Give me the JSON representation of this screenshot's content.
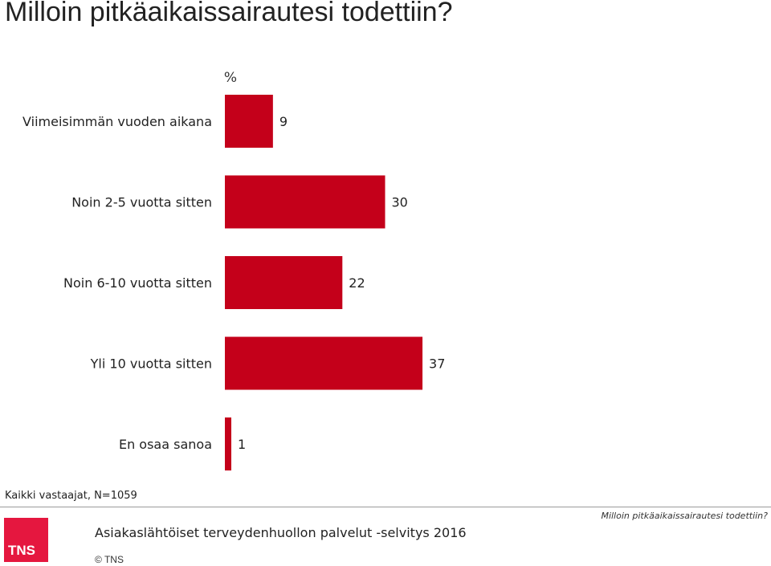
{
  "title": "Milloin pitkäaikaissairautesi todettiin?",
  "chart_data": {
    "type": "bar",
    "orientation": "horizontal",
    "unit_label": "%",
    "categories": [
      "Viimeisimmän vuoden aikana",
      "Noin 2-5 vuotta sitten",
      "Noin 6-10 vuotta sitten",
      "Yli 10 vuotta sitten",
      "En osaa sanoa"
    ],
    "values": [
      9,
      30,
      22,
      37,
      1
    ],
    "xlim": [
      0,
      100
    ],
    "grid": false,
    "legend": "none",
    "bar_color": "#c4001a"
  },
  "base_note": "Kaikki vastaajat, N=1059",
  "survey_name": "Asiakaslähtöiset terveydenhuollon palvelut -selvitys 2016",
  "copyright": "© TNS",
  "logo_text": "TNS",
  "logo_color": "#e5173f",
  "right_note": "Milloin pitkäaikaissairautesi todettiin?"
}
